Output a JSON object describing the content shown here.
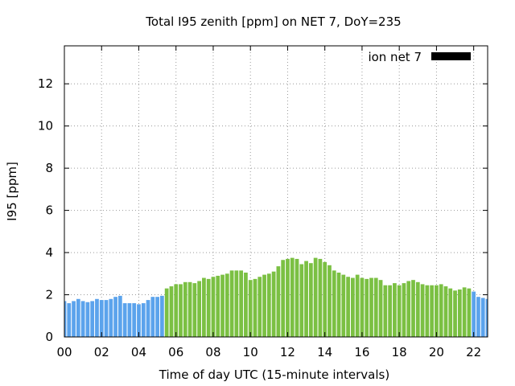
{
  "chart_data": {
    "type": "bar",
    "title": "Total I95 zenith [ppm] on NET 7, DoY=235",
    "xlabel": "Time of day UTC (15-minute intervals)",
    "ylabel": "I95 [ppm]",
    "xlim": [
      0,
      22.75
    ],
    "ylim": [
      0,
      13.8
    ],
    "grid": true,
    "legend_position": "top-right",
    "legend": {
      "label": "ion net 7",
      "swatch_color": "#000000"
    },
    "x_ticks": [
      {
        "value": 0,
        "label": "00"
      },
      {
        "value": 2,
        "label": "02"
      },
      {
        "value": 4,
        "label": "04"
      },
      {
        "value": 6,
        "label": "06"
      },
      {
        "value": 8,
        "label": "08"
      },
      {
        "value": 10,
        "label": "10"
      },
      {
        "value": 12,
        "label": "12"
      },
      {
        "value": 14,
        "label": "14"
      },
      {
        "value": 16,
        "label": "16"
      },
      {
        "value": 18,
        "label": "18"
      },
      {
        "value": 20,
        "label": "20"
      },
      {
        "value": 22,
        "label": "22"
      }
    ],
    "y_ticks": [
      {
        "value": 0,
        "label": "0"
      },
      {
        "value": 2,
        "label": "2"
      },
      {
        "value": 4,
        "label": "4"
      },
      {
        "value": 6,
        "label": "6"
      },
      {
        "value": 8,
        "label": "8"
      },
      {
        "value": 10,
        "label": "10"
      },
      {
        "value": 12,
        "label": "12"
      }
    ],
    "bar_interval_hours": 0.25,
    "series": [
      {
        "color": "#5ba3ec",
        "x": [
          0,
          0.25,
          0.5,
          0.75,
          1,
          1.25,
          1.5,
          1.75,
          2,
          2.25,
          2.5,
          2.75,
          3,
          3.25,
          3.5,
          3.75,
          4,
          4.25,
          4.5,
          4.75,
          5,
          5.25
        ],
        "values": [
          1.7,
          1.6,
          1.7,
          1.8,
          1.7,
          1.65,
          1.7,
          1.8,
          1.75,
          1.75,
          1.8,
          1.9,
          1.95,
          1.6,
          1.6,
          1.6,
          1.55,
          1.6,
          1.75,
          1.9,
          1.9,
          1.95
        ]
      },
      {
        "color": "#7bc043",
        "x": [
          5.5,
          5.75,
          6,
          6.25,
          6.5,
          6.75,
          7,
          7.25,
          7.5,
          7.75,
          8,
          8.25,
          8.5,
          8.75,
          9,
          9.25,
          9.5,
          9.75,
          10,
          10.25,
          10.5,
          10.75,
          11,
          11.25,
          11.5,
          11.75,
          12,
          12.25,
          12.5,
          12.75,
          13,
          13.25,
          13.5,
          13.75,
          14,
          14.25,
          14.5,
          14.75,
          15,
          15.25,
          15.5,
          15.75,
          16,
          16.25,
          16.5,
          16.75,
          17,
          17.25,
          17.5,
          17.75,
          18,
          18.25,
          18.5,
          18.75,
          19,
          19.25,
          19.5,
          19.75,
          20,
          20.25,
          20.5,
          20.75,
          21,
          21.25,
          21.5,
          21.75
        ],
        "values": [
          2.3,
          2.4,
          2.5,
          2.5,
          2.6,
          2.6,
          2.55,
          2.65,
          2.8,
          2.75,
          2.85,
          2.9,
          2.95,
          3.0,
          3.15,
          3.15,
          3.15,
          3.05,
          2.7,
          2.75,
          2.85,
          2.95,
          3.0,
          3.1,
          3.35,
          3.65,
          3.7,
          3.75,
          3.7,
          3.45,
          3.6,
          3.5,
          3.75,
          3.7,
          3.55,
          3.4,
          3.15,
          3.05,
          2.95,
          2.85,
          2.8,
          2.95,
          2.8,
          2.75,
          2.8,
          2.8,
          2.7,
          2.45,
          2.45,
          2.55,
          2.45,
          2.55,
          2.65,
          2.7,
          2.6,
          2.5,
          2.45,
          2.45,
          2.45,
          2.5,
          2.4,
          2.3,
          2.2,
          2.25,
          2.35,
          2.3
        ]
      },
      {
        "color": "#5ba3ec",
        "x": [
          22,
          22.25,
          22.5,
          22.75
        ],
        "values": [
          2.15,
          1.9,
          1.85,
          1.8
        ]
      }
    ]
  }
}
